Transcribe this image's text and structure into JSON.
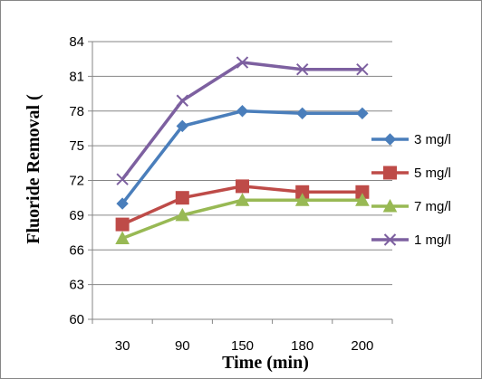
{
  "chart_data": {
    "type": "line",
    "categories": [
      "30",
      "90",
      "150",
      "180",
      "200"
    ],
    "xlabel": "Time (min)",
    "ylabel": "Fluoride Removal (",
    "ylim": [
      60,
      84
    ],
    "yticks": [
      60,
      63,
      66,
      69,
      72,
      75,
      78,
      81,
      84
    ],
    "grid": true,
    "legend_position": "right",
    "series": [
      {
        "name": "3 mg/l",
        "color": "#4a7ebb",
        "marker": "diamond",
        "values": [
          70.0,
          76.7,
          78.0,
          77.8,
          77.8
        ]
      },
      {
        "name": "5 mg/l",
        "color": "#be4b48",
        "marker": "square",
        "values": [
          68.2,
          70.5,
          71.5,
          71.0,
          71.0
        ]
      },
      {
        "name": "7 mg/l",
        "color": "#98b954",
        "marker": "triangle",
        "values": [
          67.0,
          69.0,
          70.3,
          70.3,
          70.3
        ]
      },
      {
        "name": "1 mg/l",
        "color": "#7d60a0",
        "marker": "x",
        "values": [
          72.1,
          78.9,
          82.2,
          81.6,
          81.6
        ]
      }
    ]
  }
}
